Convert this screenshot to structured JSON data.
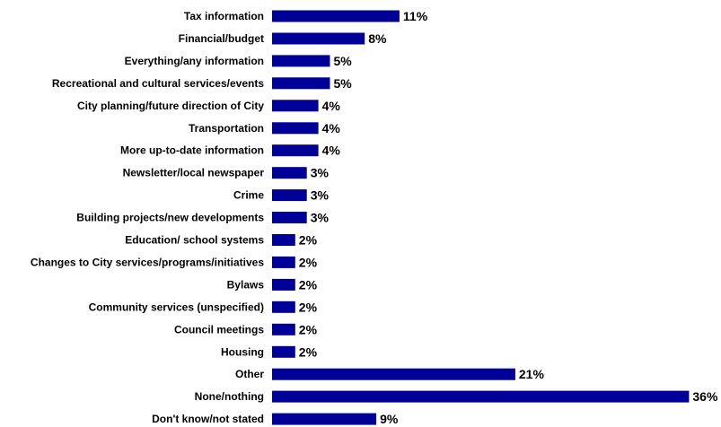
{
  "chart_data": {
    "type": "bar",
    "orientation": "horizontal",
    "categories": [
      "Tax information",
      "Financial/budget",
      "Everything/any information",
      "Recreational and cultural services/events",
      "City planning/future direction of City",
      "Transportation",
      "More up-to-date information",
      "Newsletter/local newspaper",
      "Crime",
      "Building projects/new developments",
      "Education/ school systems",
      "Changes to City services/programs/initiatives",
      "Bylaws",
      "Community services (unspecified)",
      "Council meetings",
      "Housing",
      "Other",
      "None/nothing",
      "Don't know/not stated"
    ],
    "values": [
      11,
      8,
      5,
      5,
      4,
      4,
      4,
      3,
      3,
      3,
      2,
      2,
      2,
      2,
      2,
      2,
      21,
      36,
      9
    ],
    "value_labels": [
      "11%",
      "8%",
      "5%",
      "5%",
      "4%",
      "4%",
      "4%",
      "3%",
      "3%",
      "3%",
      "2%",
      "2%",
      "2%",
      "2%",
      "2%",
      "2%",
      "21%",
      "36%",
      "9%"
    ],
    "unit": "%",
    "bar_color": "#000099",
    "grid": false,
    "legend": "none"
  }
}
